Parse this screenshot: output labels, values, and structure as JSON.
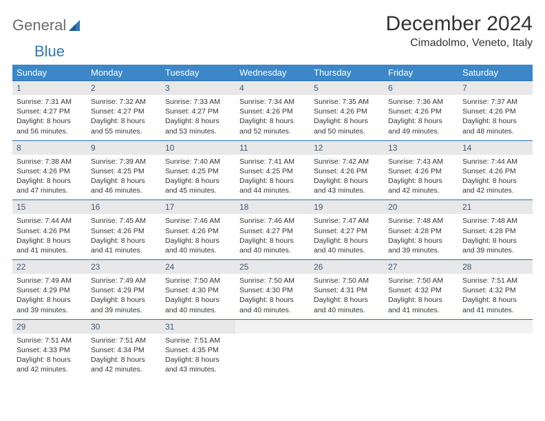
{
  "brand": {
    "part1": "General",
    "part2": "Blue"
  },
  "colors": {
    "header_bg": "#3b87c8",
    "header_text": "#ffffff",
    "daynum_bg": "#e8e8e8",
    "daynum_text": "#3a5a7a",
    "row_border": "#2f6fa8",
    "body_text": "#333333",
    "logo_gray": "#6b6b6b",
    "logo_blue": "#2f77bb"
  },
  "month_title": "December 2024",
  "location": "Cimadolmo, Veneto, Italy",
  "weekdays": [
    "Sunday",
    "Monday",
    "Tuesday",
    "Wednesday",
    "Thursday",
    "Friday",
    "Saturday"
  ],
  "weeks": [
    [
      {
        "n": "1",
        "sr": "7:31 AM",
        "ss": "4:27 PM",
        "dl": "8 hours and 56 minutes."
      },
      {
        "n": "2",
        "sr": "7:32 AM",
        "ss": "4:27 PM",
        "dl": "8 hours and 55 minutes."
      },
      {
        "n": "3",
        "sr": "7:33 AM",
        "ss": "4:27 PM",
        "dl": "8 hours and 53 minutes."
      },
      {
        "n": "4",
        "sr": "7:34 AM",
        "ss": "4:26 PM",
        "dl": "8 hours and 52 minutes."
      },
      {
        "n": "5",
        "sr": "7:35 AM",
        "ss": "4:26 PM",
        "dl": "8 hours and 50 minutes."
      },
      {
        "n": "6",
        "sr": "7:36 AM",
        "ss": "4:26 PM",
        "dl": "8 hours and 49 minutes."
      },
      {
        "n": "7",
        "sr": "7:37 AM",
        "ss": "4:26 PM",
        "dl": "8 hours and 48 minutes."
      }
    ],
    [
      {
        "n": "8",
        "sr": "7:38 AM",
        "ss": "4:26 PM",
        "dl": "8 hours and 47 minutes."
      },
      {
        "n": "9",
        "sr": "7:39 AM",
        "ss": "4:25 PM",
        "dl": "8 hours and 46 minutes."
      },
      {
        "n": "10",
        "sr": "7:40 AM",
        "ss": "4:25 PM",
        "dl": "8 hours and 45 minutes."
      },
      {
        "n": "11",
        "sr": "7:41 AM",
        "ss": "4:25 PM",
        "dl": "8 hours and 44 minutes."
      },
      {
        "n": "12",
        "sr": "7:42 AM",
        "ss": "4:26 PM",
        "dl": "8 hours and 43 minutes."
      },
      {
        "n": "13",
        "sr": "7:43 AM",
        "ss": "4:26 PM",
        "dl": "8 hours and 42 minutes."
      },
      {
        "n": "14",
        "sr": "7:44 AM",
        "ss": "4:26 PM",
        "dl": "8 hours and 42 minutes."
      }
    ],
    [
      {
        "n": "15",
        "sr": "7:44 AM",
        "ss": "4:26 PM",
        "dl": "8 hours and 41 minutes."
      },
      {
        "n": "16",
        "sr": "7:45 AM",
        "ss": "4:26 PM",
        "dl": "8 hours and 41 minutes."
      },
      {
        "n": "17",
        "sr": "7:46 AM",
        "ss": "4:26 PM",
        "dl": "8 hours and 40 minutes."
      },
      {
        "n": "18",
        "sr": "7:46 AM",
        "ss": "4:27 PM",
        "dl": "8 hours and 40 minutes."
      },
      {
        "n": "19",
        "sr": "7:47 AM",
        "ss": "4:27 PM",
        "dl": "8 hours and 40 minutes."
      },
      {
        "n": "20",
        "sr": "7:48 AM",
        "ss": "4:28 PM",
        "dl": "8 hours and 39 minutes."
      },
      {
        "n": "21",
        "sr": "7:48 AM",
        "ss": "4:28 PM",
        "dl": "8 hours and 39 minutes."
      }
    ],
    [
      {
        "n": "22",
        "sr": "7:49 AM",
        "ss": "4:29 PM",
        "dl": "8 hours and 39 minutes."
      },
      {
        "n": "23",
        "sr": "7:49 AM",
        "ss": "4:29 PM",
        "dl": "8 hours and 39 minutes."
      },
      {
        "n": "24",
        "sr": "7:50 AM",
        "ss": "4:30 PM",
        "dl": "8 hours and 40 minutes."
      },
      {
        "n": "25",
        "sr": "7:50 AM",
        "ss": "4:30 PM",
        "dl": "8 hours and 40 minutes."
      },
      {
        "n": "26",
        "sr": "7:50 AM",
        "ss": "4:31 PM",
        "dl": "8 hours and 40 minutes."
      },
      {
        "n": "27",
        "sr": "7:50 AM",
        "ss": "4:32 PM",
        "dl": "8 hours and 41 minutes."
      },
      {
        "n": "28",
        "sr": "7:51 AM",
        "ss": "4:32 PM",
        "dl": "8 hours and 41 minutes."
      }
    ],
    [
      {
        "n": "29",
        "sr": "7:51 AM",
        "ss": "4:33 PM",
        "dl": "8 hours and 42 minutes."
      },
      {
        "n": "30",
        "sr": "7:51 AM",
        "ss": "4:34 PM",
        "dl": "8 hours and 42 minutes."
      },
      {
        "n": "31",
        "sr": "7:51 AM",
        "ss": "4:35 PM",
        "dl": "8 hours and 43 minutes."
      },
      null,
      null,
      null,
      null
    ]
  ],
  "labels": {
    "sunrise": "Sunrise:",
    "sunset": "Sunset:",
    "daylight": "Daylight:"
  }
}
